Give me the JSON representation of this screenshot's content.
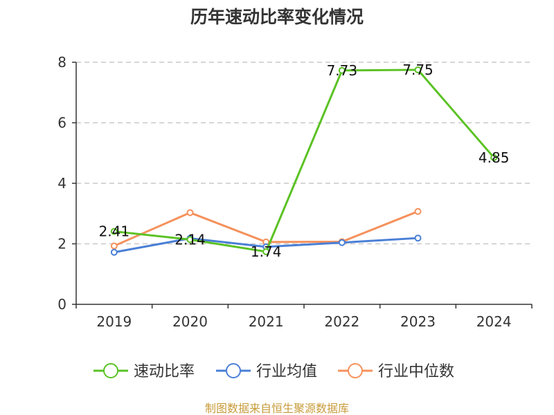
{
  "colors": {
    "series": [
      "#5bc224",
      "#4a7fd6",
      "#f5915c"
    ],
    "source": "#c79b3a",
    "axis": "#333333",
    "grid": "#c8c8c8"
  },
  "source": "制图数据来自恒生聚源数据库",
  "chart_data": {
    "type": "line",
    "title": "历年速动比率变化情况",
    "xlabel": "",
    "ylabel": "",
    "categories": [
      "2019",
      "2020",
      "2021",
      "2022",
      "2023",
      "2024"
    ],
    "ylim": [
      0,
      8
    ],
    "yticks": [
      0,
      2,
      4,
      6,
      8
    ],
    "grid": "horizontal dashed",
    "legend_position": "bottom",
    "series": [
      {
        "name": "速动比率",
        "values": [
          2.41,
          2.14,
          1.74,
          7.73,
          7.75,
          4.85
        ],
        "labels": [
          "2.41",
          "2.14",
          "1.74",
          "7.73",
          "7.75",
          "4.85"
        ]
      },
      {
        "name": "行业均值",
        "values": [
          1.72,
          2.18,
          1.9,
          2.04,
          2.19,
          null
        ]
      },
      {
        "name": "行业中位数",
        "values": [
          1.93,
          3.03,
          2.06,
          2.07,
          3.07,
          null
        ]
      }
    ]
  }
}
